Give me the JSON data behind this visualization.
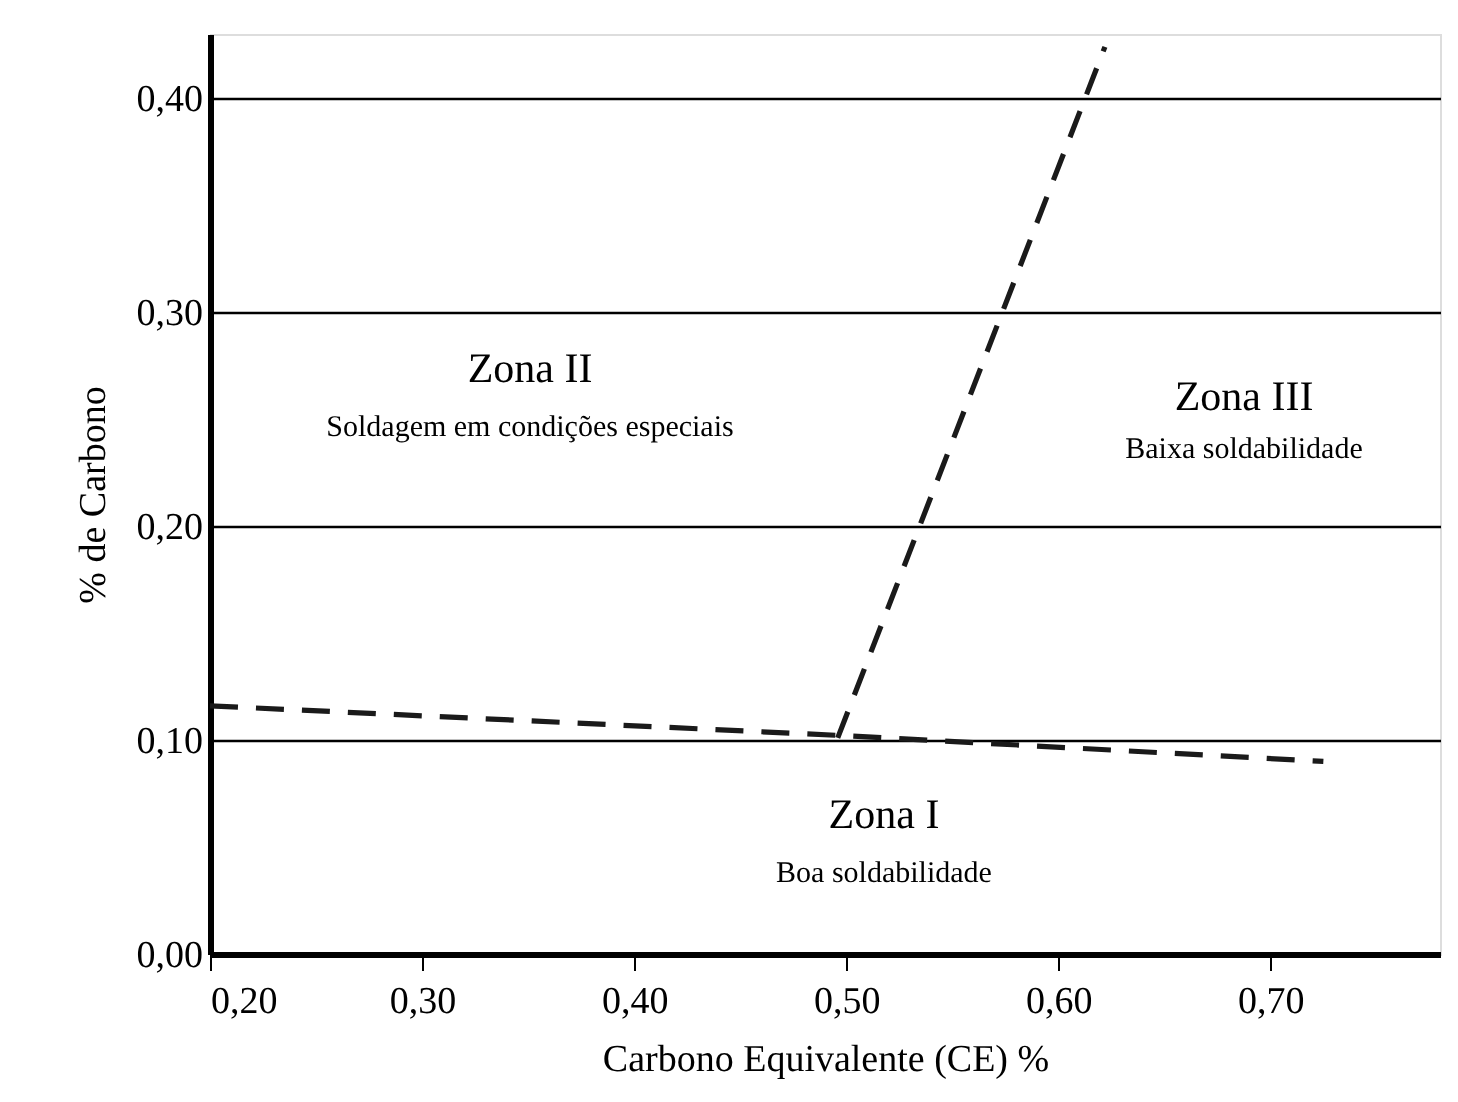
{
  "chart_data": {
    "type": "line",
    "xlabel": "Carbono Equivalente (CE) %",
    "ylabel": "% de Carbono",
    "xlim": [
      0.2,
      0.78
    ],
    "ylim": [
      0.0,
      0.43
    ],
    "xticks": [
      {
        "value": 0.2,
        "label": "0,20"
      },
      {
        "value": 0.3,
        "label": "0,30"
      },
      {
        "value": 0.4,
        "label": "0,40"
      },
      {
        "value": 0.5,
        "label": "0,50"
      },
      {
        "value": 0.6,
        "label": "0,60"
      },
      {
        "value": 0.7,
        "label": "0,70"
      }
    ],
    "yticks": [
      {
        "value": 0.0,
        "label": "0,00"
      },
      {
        "value": 0.1,
        "label": "0,10"
      },
      {
        "value": 0.2,
        "label": "0,20"
      },
      {
        "value": 0.3,
        "label": "0,30"
      },
      {
        "value": 0.4,
        "label": "0,40"
      }
    ],
    "grid": "y",
    "line_style": "dashed",
    "series": [
      {
        "color": "#1a1a1a",
        "x": [
          0.2,
          0.5,
          0.725
        ],
        "values": [
          0.116,
          0.102,
          0.09
        ]
      },
      {
        "color": "#1a1a1a",
        "x": [
          0.496,
          0.622
        ],
        "values": [
          0.101,
          0.424
        ]
      }
    ],
    "annotations": [
      "Zona II",
      "Soldagem em condições especiais",
      "Zona III",
      "Baixa soldabilidade",
      "Zona I",
      "Boa soldabilidade"
    ]
  }
}
